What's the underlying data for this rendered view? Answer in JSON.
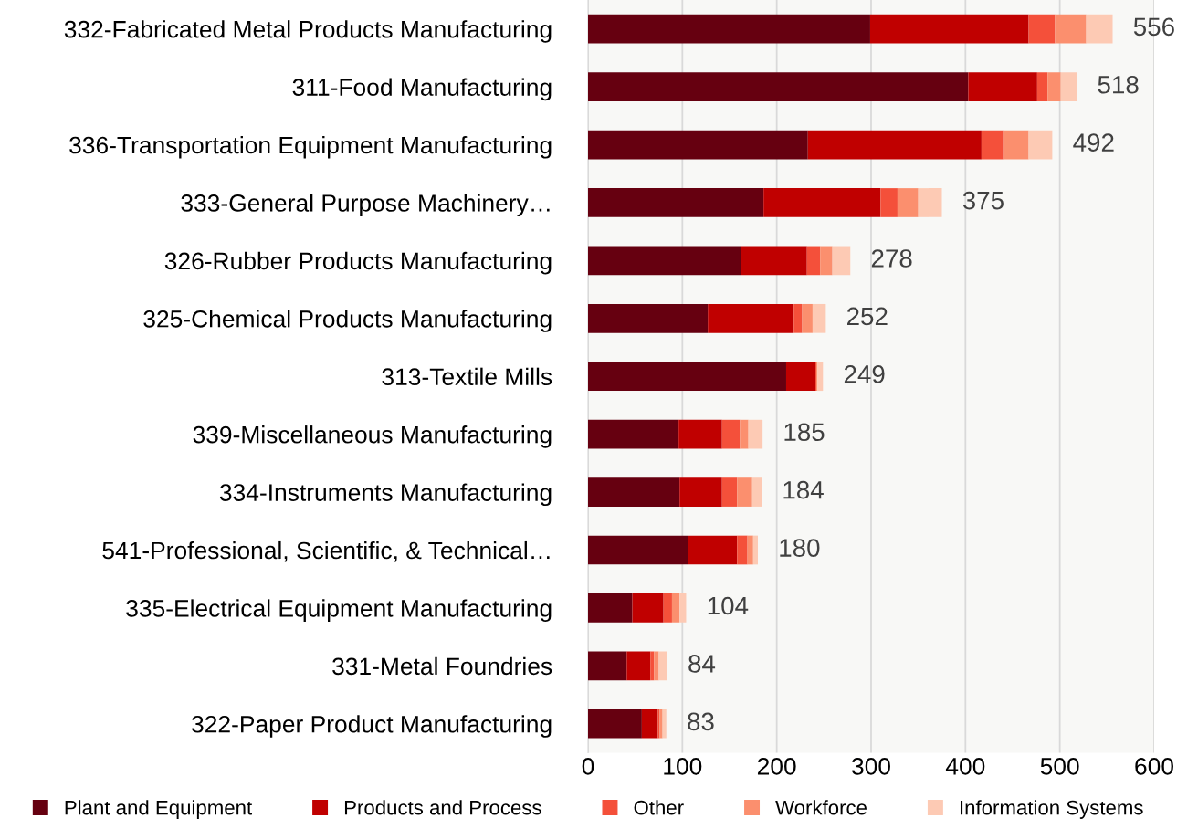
{
  "chart_data": {
    "type": "bar",
    "orientation": "horizontal",
    "stacked": true,
    "categories": [
      "332-Fabricated Metal Products Manufacturing",
      "311-Food Manufacturing",
      "336-Transportation Equipment Manufacturing",
      "333-General Purpose Machinery…",
      "326-Rubber Products Manufacturing",
      "325-Chemical Products Manufacturing",
      "313-Textile Mills",
      "339-Miscellaneous Manufacturing",
      "334-Instruments Manufacturing",
      "541-Professional, Scientific, & Technical…",
      "335-Electrical Equipment Manufacturing",
      "331-Metal Foundries",
      "322-Paper Product Manufacturing"
    ],
    "series": [
      {
        "name": "Plant and Equipment",
        "color": "#660010",
        "values": [
          299,
          403,
          233,
          186,
          162,
          127,
          210,
          96,
          97,
          106,
          47,
          41,
          57
        ]
      },
      {
        "name": "Products and Process",
        "color": "#c00000",
        "values": [
          168,
          73,
          184,
          124,
          70,
          91,
          31,
          46,
          45,
          52,
          33,
          25,
          17
        ]
      },
      {
        "name": "Other",
        "color": "#f4503a",
        "values": [
          28,
          11,
          23,
          18,
          14,
          9,
          1,
          19,
          16,
          11,
          9,
          4,
          2
        ]
      },
      {
        "name": "Workforce",
        "color": "#fb8f6e",
        "values": [
          33,
          14,
          27,
          22,
          13,
          11,
          1,
          9,
          16,
          6,
          8,
          5,
          3
        ]
      },
      {
        "name": "Information Systems",
        "color": "#fdcab4",
        "values": [
          28,
          17,
          25,
          25,
          19,
          14,
          6,
          15,
          10,
          5,
          7,
          9,
          4
        ]
      }
    ],
    "totals": [
      "556",
      "518",
      "492",
      "375",
      "278",
      "252",
      "249",
      "185",
      "184",
      "180",
      "104",
      "84",
      "83"
    ],
    "xlim": [
      0,
      600
    ],
    "xticks": [
      0,
      100,
      200,
      300,
      400,
      500,
      600
    ],
    "grid": "x",
    "legend": "bottom"
  }
}
